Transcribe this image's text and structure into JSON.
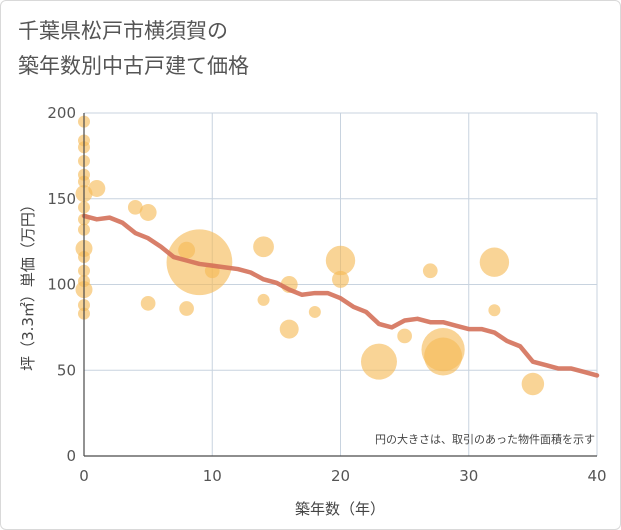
{
  "chart_data": {
    "type": "scatter",
    "title": "千葉県松戸市横須賀の\n築年数別中古戸建て価格",
    "xlabel": "築年数（年）",
    "ylabel": "坪（3.3㎡）単価（万円）",
    "xlim": [
      0,
      40
    ],
    "ylim": [
      0,
      200
    ],
    "x_ticks": [
      "0",
      "10",
      "20",
      "30",
      "40"
    ],
    "y_ticks": [
      "0",
      "50",
      "100",
      "150",
      "200"
    ],
    "grid": true,
    "annotation": "円の大きさは、取引のあった物件面積を示す",
    "colors": {
      "bubble": "#f5b955",
      "trend": "#d4715a",
      "grid": "#c8d3df",
      "axis": "#4a4a4a"
    },
    "bubbles": [
      {
        "x": 0,
        "y": 195,
        "s": 1
      },
      {
        "x": 0,
        "y": 184,
        "s": 1
      },
      {
        "x": 0,
        "y": 180,
        "s": 1
      },
      {
        "x": 0,
        "y": 172,
        "s": 1
      },
      {
        "x": 0,
        "y": 164,
        "s": 1
      },
      {
        "x": 0,
        "y": 160,
        "s": 1
      },
      {
        "x": 0,
        "y": 153,
        "s": 2
      },
      {
        "x": 0,
        "y": 145,
        "s": 1
      },
      {
        "x": 0,
        "y": 138,
        "s": 1
      },
      {
        "x": 0,
        "y": 132,
        "s": 1
      },
      {
        "x": 0,
        "y": 121,
        "s": 2
      },
      {
        "x": 0,
        "y": 116,
        "s": 1
      },
      {
        "x": 0,
        "y": 108,
        "s": 1
      },
      {
        "x": 0,
        "y": 102,
        "s": 1
      },
      {
        "x": 0,
        "y": 97,
        "s": 2
      },
      {
        "x": 0,
        "y": 88,
        "s": 1
      },
      {
        "x": 0,
        "y": 83,
        "s": 1
      },
      {
        "x": 1,
        "y": 156,
        "s": 2
      },
      {
        "x": 4,
        "y": 145,
        "s": 1.5
      },
      {
        "x": 5,
        "y": 142,
        "s": 2
      },
      {
        "x": 5,
        "y": 89,
        "s": 1.5
      },
      {
        "x": 8,
        "y": 120,
        "s": 2
      },
      {
        "x": 8,
        "y": 86,
        "s": 1.5
      },
      {
        "x": 9,
        "y": 113,
        "s": 30
      },
      {
        "x": 10,
        "y": 108,
        "s": 1.5
      },
      {
        "x": 14,
        "y": 122,
        "s": 3
      },
      {
        "x": 14,
        "y": 91,
        "s": 1
      },
      {
        "x": 16,
        "y": 100,
        "s": 2
      },
      {
        "x": 16,
        "y": 74,
        "s": 2.5
      },
      {
        "x": 18,
        "y": 84,
        "s": 1
      },
      {
        "x": 20,
        "y": 114,
        "s": 6
      },
      {
        "x": 20,
        "y": 103,
        "s": 2
      },
      {
        "x": 23,
        "y": 55,
        "s": 9
      },
      {
        "x": 25,
        "y": 70,
        "s": 1.5
      },
      {
        "x": 27,
        "y": 108,
        "s": 1.5
      },
      {
        "x": 28,
        "y": 62,
        "s": 13
      },
      {
        "x": 28,
        "y": 58,
        "s": 10
      },
      {
        "x": 32,
        "y": 113,
        "s": 6
      },
      {
        "x": 32,
        "y": 85,
        "s": 1
      },
      {
        "x": 35,
        "y": 42,
        "s": 3.5
      }
    ],
    "trend": {
      "name": "",
      "x": [
        0,
        1,
        2,
        3,
        4,
        5,
        6,
        7,
        8,
        9,
        10,
        11,
        12,
        13,
        14,
        15,
        16,
        17,
        18,
        19,
        20,
        21,
        22,
        23,
        24,
        25,
        26,
        27,
        28,
        29,
        30,
        31,
        32,
        33,
        34,
        35,
        36,
        37,
        38,
        39,
        40
      ],
      "y": [
        140,
        138,
        139,
        136,
        130,
        127,
        122,
        116,
        114,
        112,
        111,
        110,
        109,
        107,
        103,
        101,
        97,
        94,
        95,
        95,
        92,
        87,
        84,
        77,
        75,
        79,
        80,
        78,
        78,
        76,
        74,
        74,
        72,
        67,
        64,
        55,
        53,
        51,
        51,
        49,
        47
      ]
    }
  }
}
